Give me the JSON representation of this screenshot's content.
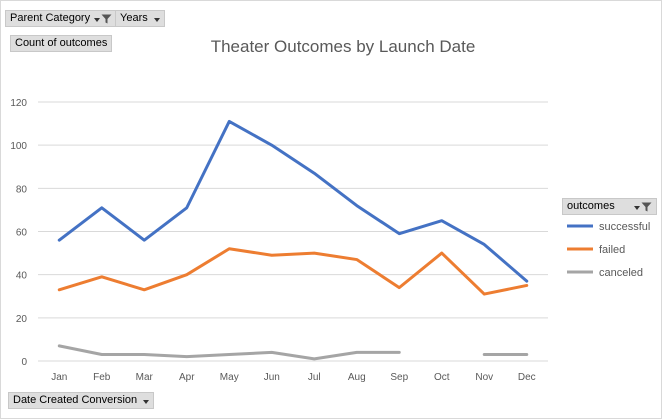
{
  "buttons": {
    "parent_category": "Parent Category",
    "years": "Years",
    "count_of_outcomes": "Count of outcomes",
    "date_created": "Date Created Conversion"
  },
  "legend": {
    "header": "outcomes"
  },
  "chart_data": {
    "type": "line",
    "title": "Theater Outcomes by Launch Date",
    "xlabel": "",
    "ylabel": "",
    "categories": [
      "Jan",
      "Feb",
      "Mar",
      "Apr",
      "May",
      "Jun",
      "Jul",
      "Aug",
      "Sep",
      "Oct",
      "Nov",
      "Dec"
    ],
    "ylim": [
      0,
      120
    ],
    "yticks": [
      0,
      20,
      40,
      60,
      80,
      100,
      120
    ],
    "grid": true,
    "legend_position": "right",
    "series": [
      {
        "name": "successful",
        "color": "#4472c4",
        "values": [
          56,
          71,
          56,
          71,
          111,
          100,
          87,
          72,
          59,
          65,
          54,
          37
        ]
      },
      {
        "name": "failed",
        "color": "#ed7d31",
        "values": [
          33,
          39,
          33,
          40,
          52,
          49,
          50,
          47,
          34,
          50,
          31,
          35
        ]
      },
      {
        "name": "canceled",
        "color": "#a5a5a5",
        "values": [
          7,
          3,
          3,
          2,
          3,
          4,
          1,
          4,
          4,
          null,
          3,
          3
        ]
      }
    ]
  }
}
